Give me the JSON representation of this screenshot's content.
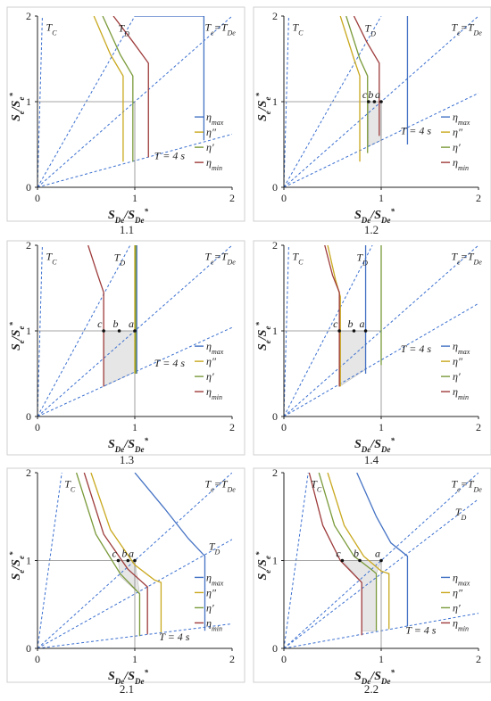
{
  "colors": {
    "eta_max": "#4472c4",
    "eta_pp": "#c9a81e",
    "eta_p": "#7a9a3a",
    "eta_min": "#9e3b3b",
    "guide": "#3a6fd0",
    "ref": "#888888",
    "shade": "#e6e6e6"
  },
  "chart_data": [
    {
      "type": "line",
      "caption": "1.1",
      "xlabel_main": "S",
      "xlabel_sub": "De",
      "xlabel_sep": "/",
      "xlabel_main2": "S",
      "xlabel_sub2": "De",
      "xlabel_sup2": "*",
      "ylabel": "Se/Se*",
      "xlim": [
        0,
        2
      ],
      "ylim": [
        0,
        2
      ],
      "xticks": [
        "0",
        "1",
        "2"
      ],
      "yticks": [
        "0",
        "1",
        "2"
      ],
      "guides": [
        {
          "label": "T_C",
          "slope": 40
        },
        {
          "label": "T_D",
          "slope": 2.0
        },
        {
          "label": "T = 4 s",
          "slope": 0.31
        },
        {
          "label": "Te=TDe",
          "slope": 1
        }
      ],
      "series": [
        {
          "name": "η_max",
          "color": "eta_max",
          "x": [
            1.0,
            1.71,
            1.71,
            1.71
          ],
          "y": [
            2.0,
            2.0,
            1.0,
            0.55
          ]
        },
        {
          "name": "η″",
          "color": "eta_pp",
          "x": [
            0.58,
            0.75,
            0.88,
            0.88
          ],
          "y": [
            2.0,
            1.55,
            1.3,
            0.3
          ]
        },
        {
          "name": "η′",
          "color": "eta_p",
          "x": [
            0.67,
            0.85,
            0.98,
            0.98
          ],
          "y": [
            2.0,
            1.55,
            1.3,
            0.3
          ]
        },
        {
          "name": "η_min",
          "color": "eta_min",
          "x": [
            0.78,
            0.98,
            1.14,
            1.14
          ],
          "y": [
            2.0,
            1.7,
            1.45,
            0.35
          ]
        }
      ],
      "ref_x": 1,
      "ref_y": 1,
      "points": [],
      "shade": null,
      "labels": {
        "tc": "T",
        "tc_sub": "C",
        "td": "T",
        "td_sub": "D",
        "t4": "T = 4 s",
        "te": "T",
        "te_sub": "e",
        "eq": "=",
        "tde": "T",
        "tde_sub": "De"
      }
    },
    {
      "type": "line",
      "caption": "1.2",
      "ylabel": "Se/Se*",
      "xlim": [
        0,
        2
      ],
      "ylim": [
        0,
        2
      ],
      "xticks": [
        "0",
        "1",
        "2"
      ],
      "yticks": [
        "0",
        "1",
        "2"
      ],
      "guides": [
        {
          "label": "T_C",
          "slope": 40
        },
        {
          "label": "T_D",
          "slope": 2.0
        },
        {
          "label": "T = 4 s",
          "slope": 0.55
        },
        {
          "label": "Te=TDe",
          "slope": 1
        }
      ],
      "series": [
        {
          "name": "η_max",
          "color": "eta_max",
          "x": [
            1.27,
            1.27,
            1.27
          ],
          "y": [
            2.0,
            1.0,
            0.5
          ]
        },
        {
          "name": "η″",
          "color": "eta_pp",
          "x": [
            0.58,
            0.72,
            0.78,
            0.78
          ],
          "y": [
            2.0,
            1.5,
            1.3,
            0.3
          ]
        },
        {
          "name": "η′",
          "color": "eta_p",
          "x": [
            0.64,
            0.78,
            0.86,
            0.86
          ],
          "y": [
            2.0,
            1.5,
            1.3,
            0.4
          ]
        },
        {
          "name": "η_min",
          "color": "eta_min",
          "x": [
            0.72,
            0.85,
            0.98,
            0.98
          ],
          "y": [
            2.0,
            1.7,
            1.45,
            0.6
          ]
        }
      ],
      "ref_x": 1,
      "ref_y": 1,
      "points": [
        {
          "label": "c",
          "x": 0.87,
          "y": 1.0
        },
        {
          "label": "b",
          "x": 0.93,
          "y": 1.0
        },
        {
          "label": "a",
          "x": 1.0,
          "y": 1.0
        }
      ],
      "shade": [
        [
          0.87,
          1.0
        ],
        [
          1.0,
          1.0
        ],
        [
          1.0,
          0.55
        ],
        [
          0.87,
          0.48
        ]
      ],
      "labels": {
        "tc": "T",
        "tc_sub": "C",
        "td": "T",
        "td_sub": "D",
        "t4": "T = 4 s",
        "te": "T",
        "te_sub": "e",
        "eq": "=",
        "tde": "T",
        "tde_sub": "De"
      }
    },
    {
      "type": "line",
      "caption": "1.3",
      "ylabel": "Se/Se*",
      "xlim": [
        0,
        2
      ],
      "ylim": [
        0,
        2
      ],
      "xticks": [
        "0",
        "1",
        "2"
      ],
      "yticks": [
        "0",
        "1",
        "2"
      ],
      "guides": [
        {
          "label": "T_C",
          "slope": 40
        },
        {
          "label": "T_D",
          "slope": 2.1
        },
        {
          "label": "T = 4 s",
          "slope": 0.52
        },
        {
          "label": "Te=TDe",
          "slope": 1
        }
      ],
      "series": [
        {
          "name": "η_max",
          "color": "eta_max",
          "x": [
            1.02,
            1.02,
            1.02
          ],
          "y": [
            2.0,
            1.0,
            0.5
          ]
        },
        {
          "name": "η″",
          "color": "eta_pp",
          "x": [
            1.0,
            1.0,
            1.0
          ],
          "y": [
            2.0,
            1.0,
            0.5
          ]
        },
        {
          "name": "η′",
          "color": "eta_p",
          "x": [
            1.01,
            1.01,
            1.01
          ],
          "y": [
            2.0,
            1.0,
            0.5
          ]
        },
        {
          "name": "η_min",
          "color": "eta_min",
          "x": [
            0.52,
            0.62,
            0.68,
            0.68
          ],
          "y": [
            2.0,
            1.65,
            1.45,
            0.35
          ]
        }
      ],
      "ref_x": 1,
      "ref_y": 1,
      "points": [
        {
          "label": "c",
          "x": 0.68,
          "y": 1.0
        },
        {
          "label": "b",
          "x": 0.84,
          "y": 1.0
        },
        {
          "label": "a",
          "x": 1.0,
          "y": 1.0
        }
      ],
      "shade": [
        [
          0.68,
          1.0
        ],
        [
          1.0,
          1.0
        ],
        [
          1.0,
          0.52
        ],
        [
          0.68,
          0.35
        ]
      ],
      "labels": {
        "tc": "T",
        "tc_sub": "C",
        "td": "T",
        "td_sub": "D",
        "t4": "T = 4 s",
        "te": "T",
        "te_sub": "e",
        "eq": "=",
        "tde": "T",
        "tde_sub": "De"
      }
    },
    {
      "type": "line",
      "caption": "1.4",
      "ylabel": "Se/Se*",
      "xlim": [
        0,
        2
      ],
      "ylim": [
        0,
        2
      ],
      "xticks": [
        "0",
        "1",
        "2"
      ],
      "yticks": [
        "0",
        "1",
        "2"
      ],
      "guides": [
        {
          "label": "T_C",
          "slope": 40
        },
        {
          "label": "T_D",
          "slope": 2.2
        },
        {
          "label": "T = 4 s",
          "slope": 0.66
        },
        {
          "label": "Te=TDe",
          "slope": 1
        }
      ],
      "series": [
        {
          "name": "η_max",
          "color": "eta_max",
          "x": [
            0.84,
            0.84,
            0.84
          ],
          "y": [
            2.0,
            1.0,
            0.5
          ]
        },
        {
          "name": "η″",
          "color": "eta_pp",
          "x": [
            0.45,
            0.53,
            0.58,
            0.58
          ],
          "y": [
            2.0,
            1.6,
            1.4,
            0.35
          ]
        },
        {
          "name": "η′",
          "color": "eta_p",
          "x": [
            1.0,
            1.0,
            1.0
          ],
          "y": [
            2.0,
            1.0,
            0.6
          ]
        },
        {
          "name": "η_min",
          "color": "eta_min",
          "x": [
            0.42,
            0.5,
            0.57,
            0.57
          ],
          "y": [
            2.0,
            1.65,
            1.45,
            0.35
          ]
        }
      ],
      "ref_x": 1,
      "ref_y": 1,
      "points": [
        {
          "label": "c",
          "x": 0.57,
          "y": 1.0
        },
        {
          "label": "b",
          "x": 0.72,
          "y": 1.0
        },
        {
          "label": "a",
          "x": 0.84,
          "y": 1.0
        }
      ],
      "shade": [
        [
          0.57,
          1.0
        ],
        [
          0.84,
          1.0
        ],
        [
          0.84,
          0.55
        ],
        [
          0.57,
          0.35
        ]
      ],
      "labels": {
        "tc": "T",
        "tc_sub": "C",
        "td": "T",
        "td_sub": "D",
        "t4": "T = 4 s",
        "te": "T",
        "te_sub": "e",
        "eq": "=",
        "tde": "T",
        "tde_sub": "De"
      }
    },
    {
      "type": "line",
      "caption": "2.1",
      "ylabel": "Se/Se*",
      "xlim": [
        0,
        2
      ],
      "ylim": [
        0,
        2
      ],
      "xticks": [
        "0",
        "1",
        "2"
      ],
      "yticks": [
        "0",
        "1",
        "2"
      ],
      "guides": [
        {
          "label": "T_C",
          "slope": 8
        },
        {
          "label": "T_D",
          "slope": 0.62
        },
        {
          "label": "T = 4 s",
          "slope": 0.14
        },
        {
          "label": "Te=TDe",
          "slope": 1
        }
      ],
      "series": [
        {
          "name": "η_max",
          "color": "eta_max",
          "x": [
            1.0,
            1.3,
            1.55,
            1.72,
            1.72
          ],
          "y": [
            2.0,
            1.6,
            1.25,
            1.05,
            0.2
          ]
        },
        {
          "name": "η″",
          "color": "eta_pp",
          "x": [
            0.55,
            0.75,
            1.0,
            1.2,
            1.27,
            1.27
          ],
          "y": [
            2.0,
            1.35,
            0.95,
            0.78,
            0.75,
            0.18
          ]
        },
        {
          "name": "η′",
          "color": "eta_p",
          "x": [
            0.4,
            0.6,
            0.85,
            1.05,
            1.05
          ],
          "y": [
            2.0,
            1.3,
            0.85,
            0.62,
            0.14
          ]
        },
        {
          "name": "η_min",
          "color": "eta_min",
          "x": [
            0.48,
            0.68,
            0.93,
            1.13,
            1.13
          ],
          "y": [
            2.0,
            1.3,
            0.9,
            0.7,
            0.16
          ]
        }
      ],
      "ref_x": 1,
      "ref_y": 1,
      "points": [
        {
          "label": "c",
          "x": 0.83,
          "y": 1.0
        },
        {
          "label": "b",
          "x": 0.93,
          "y": 1.0
        },
        {
          "label": "a",
          "x": 1.0,
          "y": 1.0
        }
      ],
      "shade": [
        [
          0.83,
          1.0
        ],
        [
          1.0,
          1.0
        ],
        [
          1.05,
          0.62
        ],
        [
          0.85,
          0.82
        ]
      ],
      "labels": {
        "tc": "T",
        "tc_sub": "C",
        "td": "T",
        "td_sub": "D",
        "t4": "T = 4 s",
        "te": "T",
        "te_sub": "e",
        "eq": "=",
        "tde": "T",
        "tde_sub": "De"
      }
    },
    {
      "type": "line",
      "caption": "2.2",
      "ylabel": "Se/Se*",
      "xlim": [
        0,
        2
      ],
      "ylim": [
        0,
        2
      ],
      "xticks": [
        "0",
        "1",
        "2"
      ],
      "yticks": [
        "0",
        "1",
        "2"
      ],
      "guides": [
        {
          "label": "T_C",
          "slope": 8
        },
        {
          "label": "T_D",
          "slope": 0.85
        },
        {
          "label": "T = 4 s",
          "slope": 0.2
        },
        {
          "label": "Te=TDe",
          "slope": 1
        }
      ],
      "series": [
        {
          "name": "η_max",
          "color": "eta_max",
          "x": [
            0.75,
            0.95,
            1.1,
            1.27,
            1.27
          ],
          "y": [
            2.0,
            1.5,
            1.2,
            1.05,
            0.25
          ]
        },
        {
          "name": "η″",
          "color": "eta_pp",
          "x": [
            0.45,
            0.62,
            0.82,
            1.0,
            1.08,
            1.08
          ],
          "y": [
            2.0,
            1.4,
            1.05,
            0.88,
            0.85,
            0.22
          ]
        },
        {
          "name": "η′",
          "color": "eta_p",
          "x": [
            0.36,
            0.52,
            0.72,
            0.92,
            0.95,
            0.95
          ],
          "y": [
            2.0,
            1.4,
            1.05,
            0.88,
            0.85,
            0.2
          ]
        },
        {
          "name": "η_min",
          "color": "eta_min",
          "x": [
            0.26,
            0.4,
            0.58,
            0.8,
            0.8
          ],
          "y": [
            2.0,
            1.4,
            1.0,
            0.75,
            0.15
          ]
        }
      ],
      "ref_x": 1,
      "ref_y": 1,
      "points": [
        {
          "label": "c",
          "x": 0.6,
          "y": 1.0
        },
        {
          "label": "b",
          "x": 0.78,
          "y": 1.0
        },
        {
          "label": "a",
          "x": 1.0,
          "y": 1.0
        }
      ],
      "shade": [
        [
          0.6,
          1.0
        ],
        [
          1.0,
          1.0
        ],
        [
          0.95,
          0.85
        ],
        [
          0.95,
          0.2
        ],
        [
          0.8,
          0.2
        ],
        [
          0.8,
          0.75
        ]
      ],
      "labels": {
        "tc": "T",
        "tc_sub": "C",
        "td": "T",
        "td_sub": "D",
        "t4": "T = 4 s",
        "te": "T",
        "te_sub": "e",
        "eq": "=",
        "tde": "T",
        "tde_sub": "De"
      }
    }
  ],
  "common": {
    "ylabel_main": "S",
    "ylabel_sub": "e",
    "ylabel_sep": "/",
    "ylabel_main2": "S",
    "ylabel_sub2": "e",
    "ylabel_sup2": "*",
    "xlabel_main": "S",
    "xlabel_sub": "De",
    "xlabel_sep": "/",
    "xlabel_main2": "S",
    "xlabel_sub2": "De",
    "xlabel_sup2": "*",
    "legend": [
      {
        "main": "η",
        "sub": "max",
        "sup": "",
        "color": "eta_max"
      },
      {
        "main": "η",
        "sub": "",
        "sup": "″",
        "color": "eta_pp"
      },
      {
        "main": "η",
        "sub": "",
        "sup": "′",
        "color": "eta_p"
      },
      {
        "main": "η",
        "sub": "min",
        "sup": "",
        "color": "eta_min"
      }
    ]
  }
}
